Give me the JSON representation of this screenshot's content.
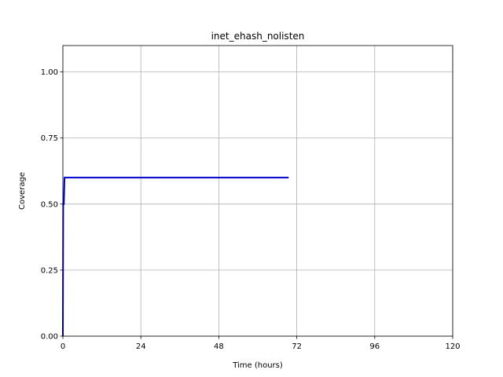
{
  "chart_data": {
    "type": "line",
    "title": "inet_ehash_nolisten",
    "xlabel": "Time (hours)",
    "ylabel": "Coverage",
    "xlim": [
      0,
      120
    ],
    "ylim": [
      0,
      1.1
    ],
    "xticks": [
      0,
      24,
      48,
      72,
      96,
      120
    ],
    "xtick_labels": [
      "0",
      "24",
      "48",
      "72",
      "96",
      "120"
    ],
    "yticks": [
      0,
      0.25,
      0.5,
      0.75,
      1.0
    ],
    "ytick_labels": [
      "0.00",
      "0.25",
      "0.50",
      "0.75",
      "1.00"
    ],
    "grid": true,
    "series": [
      {
        "color": "#0000cc",
        "x": [
          0,
          0.1,
          0.3,
          0.5,
          69.5
        ],
        "y": [
          0,
          0.5,
          0.5,
          0.6,
          0.6
        ]
      }
    ]
  }
}
